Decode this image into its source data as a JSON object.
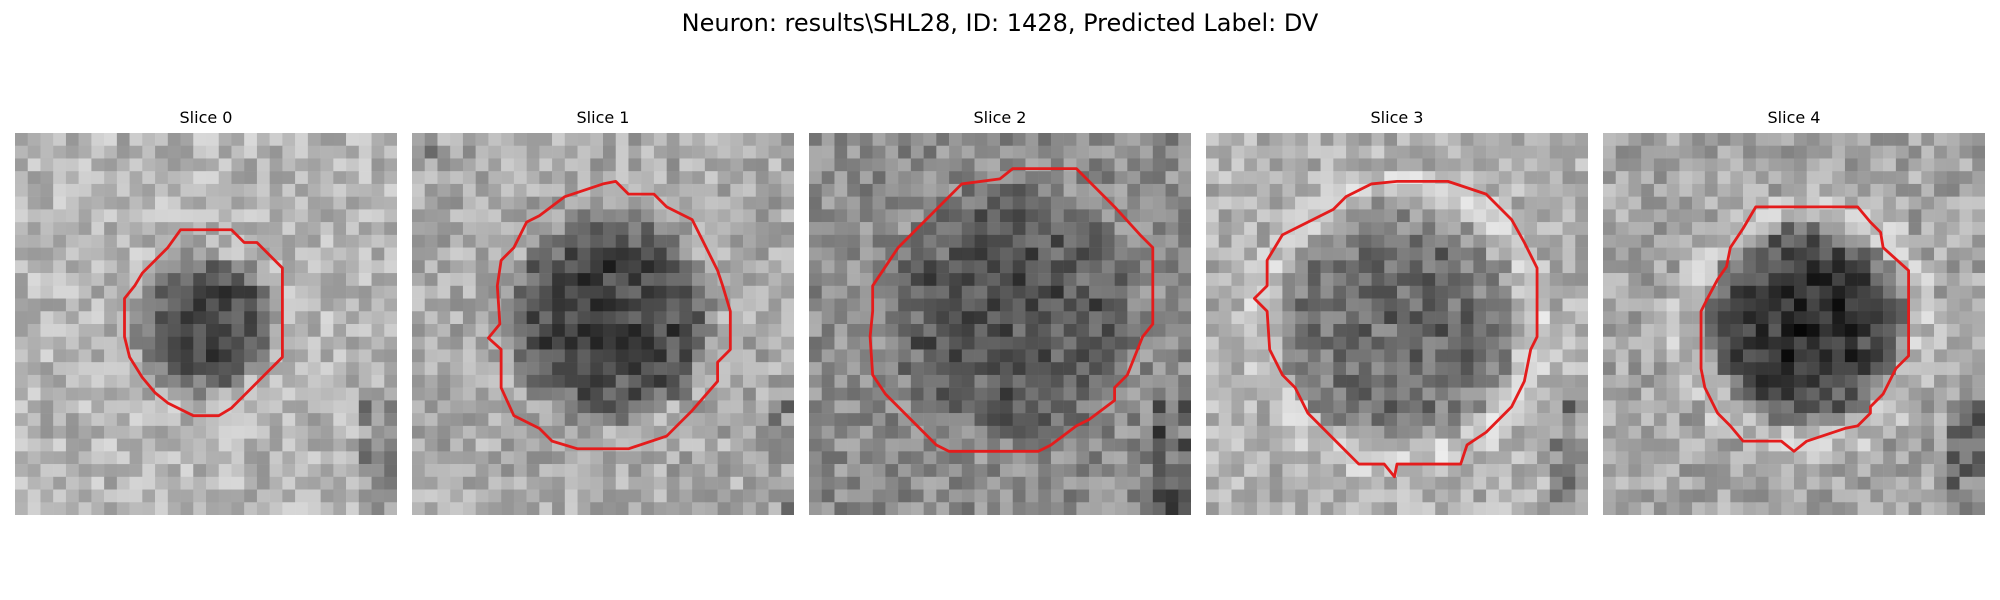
{
  "figure": {
    "title": "Neuron: results\\SHL28, ID: 1428, Predicted Label: DV"
  },
  "panels": [
    {
      "title": "Slice 0"
    },
    {
      "title": "Slice 1"
    },
    {
      "title": "Slice 2"
    },
    {
      "title": "Slice 3"
    },
    {
      "title": "Slice 4"
    }
  ],
  "colors": {
    "background": "#ffffff",
    "contour": "#e41c1c"
  }
}
